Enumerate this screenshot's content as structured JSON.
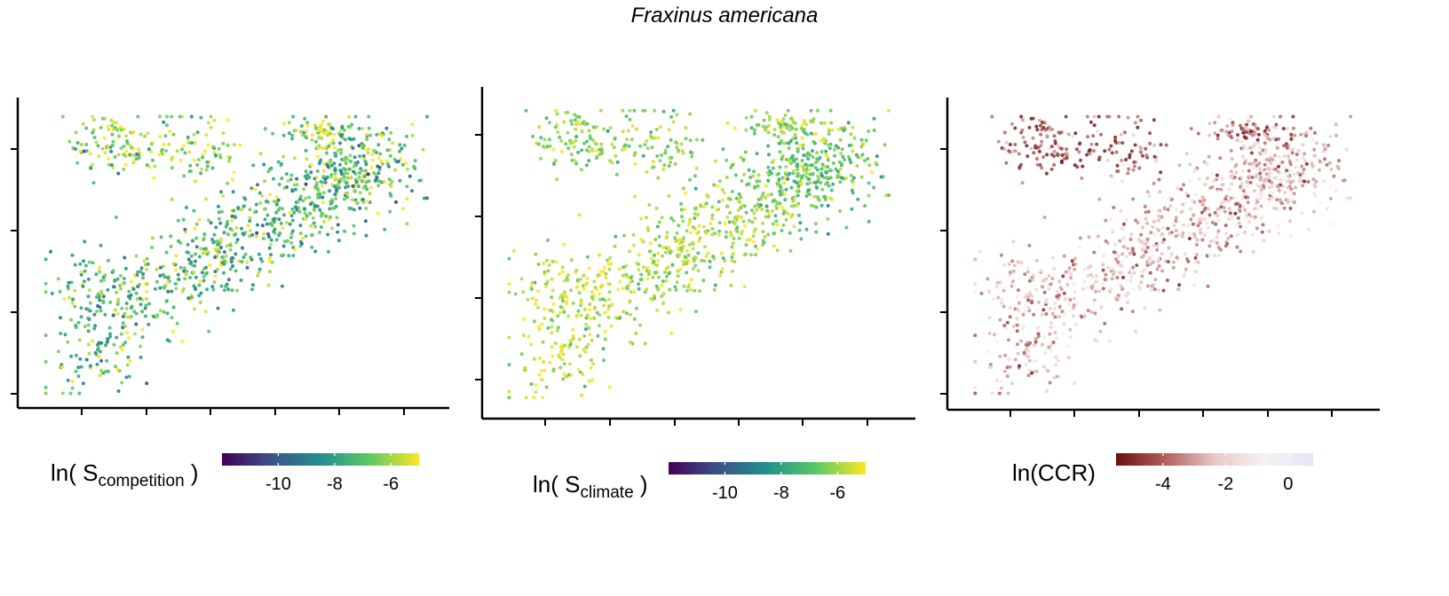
{
  "title": "Fraxinus americana",
  "panels": [
    {
      "id": "competition",
      "legend": {
        "prefix": "ln( S",
        "sub": "competition",
        "suffix": " )"
      },
      "colorbar": {
        "min": -12,
        "max": -5,
        "ticks": [
          -10,
          -8,
          -6
        ],
        "tick_labels": [
          "-10",
          "-8",
          "-6"
        ],
        "stops": [
          "#440154",
          "#3b528b",
          "#21908d",
          "#5dc963",
          "#fde725"
        ]
      },
      "value_center": -7.2,
      "value_spread": 1.4,
      "high_zone_drop": 1.0
    },
    {
      "id": "climate",
      "legend": {
        "prefix": "ln( S",
        "sub": "climate",
        "suffix": " )"
      },
      "colorbar": {
        "min": -12,
        "max": -5,
        "ticks": [
          -10,
          -8,
          -6
        ],
        "tick_labels": [
          "-10",
          "-8",
          "-6"
        ],
        "stops": [
          "#440154",
          "#3b528b",
          "#21908d",
          "#5dc963",
          "#fde725"
        ]
      },
      "value_center": -6.0,
      "value_spread": 0.7,
      "high_zone_drop": 0.8
    },
    {
      "id": "ccr",
      "legend": {
        "prefix": "ln(CCR)",
        "sub": "",
        "suffix": ""
      },
      "colorbar": {
        "min": -5.5,
        "max": 0.8,
        "ticks": [
          -4,
          -2,
          0
        ],
        "tick_labels": [
          "-4",
          "-2",
          "0"
        ],
        "stops": [
          "#6b0f10",
          "#b0605e",
          "#e8c7c5",
          "#f7f2f2",
          "#e4e4f4"
        ]
      },
      "value_center": -2.6,
      "value_spread": 1.2,
      "high_zone_drop": -1.6
    }
  ],
  "chart_data": [
    {
      "type": "scatter",
      "legend_title": "ln( S_competition )",
      "colorbar_range": [
        -12,
        -5
      ],
      "x_axis_ticks_labeled": false,
      "y_axis_ticks_labeled": false
    },
    {
      "type": "scatter",
      "legend_title": "ln( S_climate )",
      "colorbar_range": [
        -12,
        -5
      ],
      "x_axis_ticks_labeled": false,
      "y_axis_ticks_labeled": false
    },
    {
      "type": "scatter",
      "legend_title": "ln(CCR)",
      "colorbar_range": [
        -5.5,
        0.8
      ],
      "x_axis_ticks_labeled": false,
      "y_axis_ticks_labeled": false
    }
  ]
}
